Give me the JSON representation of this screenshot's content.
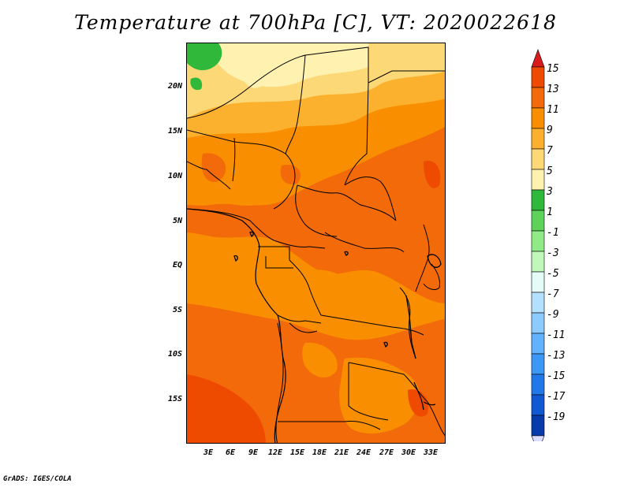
{
  "title": "Temperature at 700hPa [C], VT: 2020022618",
  "credit": "GrADS: IGES/COLA",
  "y_axis_labels": [
    "20N",
    "15N",
    "10N",
    "5N",
    "EQ",
    "5S",
    "10S",
    "15S"
  ],
  "x_axis_labels": [
    "3E",
    "6E",
    "9E",
    "12E",
    "15E",
    "18E",
    "21E",
    "24E",
    "27E",
    "30E",
    "33E"
  ],
  "colorbar": {
    "labels": [
      "15",
      "13",
      "11",
      "9",
      "7",
      "5",
      "3",
      "1",
      "-1",
      "-3",
      "-5",
      "-7",
      "-9",
      "-11",
      "-13",
      "-15",
      "-17",
      "-19"
    ],
    "colors": [
      "#e62a00",
      "#ee4a00",
      "#f26a0a",
      "#f98f00",
      "#fbb12e",
      "#fdd877",
      "#fff2b0",
      "#2fb83a",
      "#5fd25a",
      "#90ea88",
      "#bff8b8",
      "#e4fbf8",
      "#b3e0ff",
      "#8ccaff",
      "#62b2ff",
      "#3d97f7",
      "#2278e8",
      "#1159d2",
      "#093aab",
      "#0d0d6e"
    ],
    "top_color": "#d91a1a",
    "bottom_color": "#dcdcff"
  }
}
